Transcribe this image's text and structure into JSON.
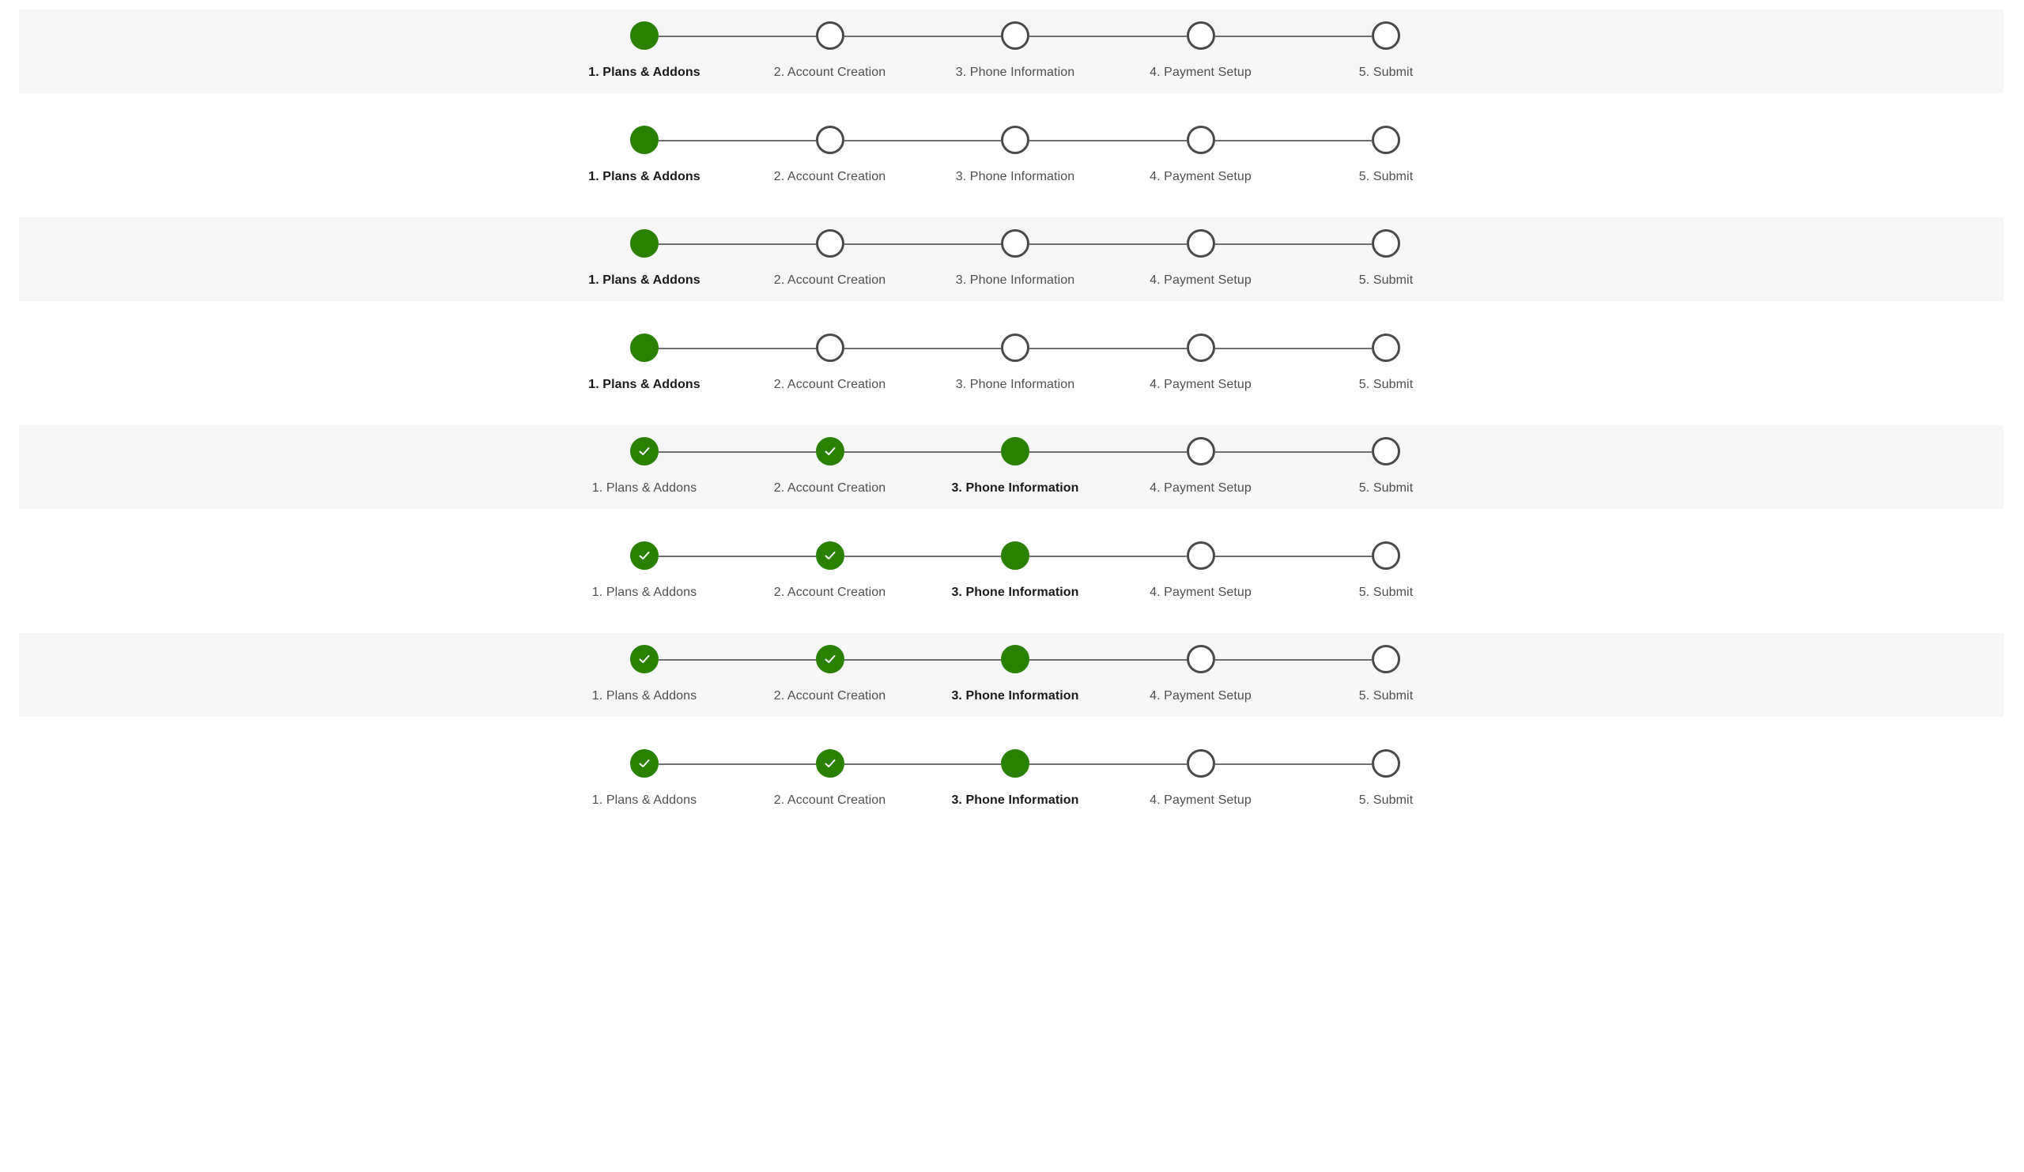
{
  "colors": {
    "accent": "#2a8000",
    "incomplete_border": "#4a4a4a",
    "connector": "#6f6f6f",
    "shaded_band": "#f6f6f6",
    "label": "#4f4f4f",
    "label_current": "#1a1a1a"
  },
  "icons": {
    "completed": "check-icon"
  },
  "steps": [
    "1. Plans & Addons",
    "2. Account Creation",
    "3. Phone Information",
    "4. Payment Setup",
    "5. Submit"
  ],
  "steppers": [
    {
      "variant": "shaded",
      "current_step": 1,
      "completed_steps": 0
    },
    {
      "variant": "plain",
      "current_step": 1,
      "completed_steps": 0
    },
    {
      "variant": "shaded",
      "current_step": 1,
      "completed_steps": 0
    },
    {
      "variant": "plain",
      "current_step": 1,
      "completed_steps": 0
    },
    {
      "variant": "shaded",
      "current_step": 3,
      "completed_steps": 2
    },
    {
      "variant": "plain",
      "current_step": 3,
      "completed_steps": 2
    },
    {
      "variant": "shaded",
      "current_step": 3,
      "completed_steps": 2
    },
    {
      "variant": "plain",
      "current_step": 3,
      "completed_steps": 2
    }
  ]
}
